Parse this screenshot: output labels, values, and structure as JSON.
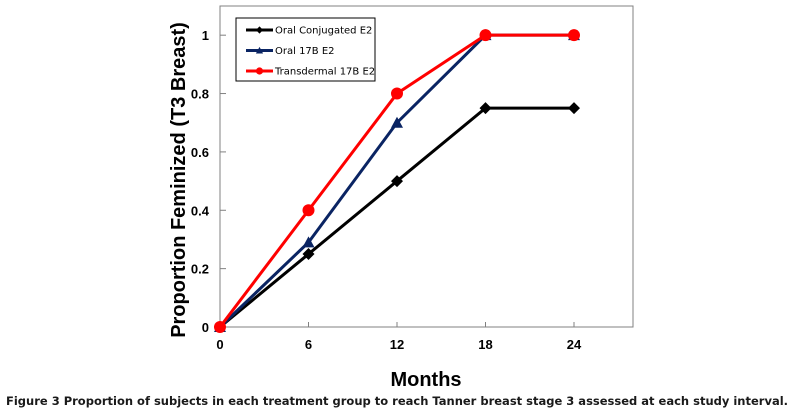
{
  "chart_data": {
    "type": "line",
    "title": "",
    "xlabel": "Months",
    "ylabel": "Proportion Feminized (T3 Breast)",
    "xlim": [
      0,
      28
    ],
    "ylim": [
      0,
      1.1
    ],
    "x_ticks": [
      0,
      6,
      12,
      18,
      24
    ],
    "y_ticks": [
      0,
      0.2,
      0.4,
      0.6,
      0.8,
      1
    ],
    "y_tick_labels": [
      "0",
      "0.2",
      "0.4",
      "0.6",
      "0.8",
      "1"
    ],
    "grid": false,
    "legend_position": "top-left",
    "x": [
      0,
      6,
      12,
      18,
      24
    ],
    "series": [
      {
        "name": "Oral Conjugated E2",
        "values": [
          0,
          0.25,
          0.5,
          0.75,
          0.75
        ],
        "color": "#000000",
        "marker": "diamond"
      },
      {
        "name": "Oral 17B E2",
        "values": [
          0,
          0.29,
          0.7,
          1,
          1
        ],
        "color": "#0a2463",
        "marker": "triangle"
      },
      {
        "name": "Transdermal 17B E2",
        "values": [
          0,
          0.4,
          0.8,
          1,
          1
        ],
        "color": "#ff0000",
        "marker": "circle"
      }
    ]
  },
  "caption": {
    "label": "Figure 3",
    "text": " Proportion of subjects in each treatment group to reach Tanner breast stage 3 assessed at each study interval."
  }
}
